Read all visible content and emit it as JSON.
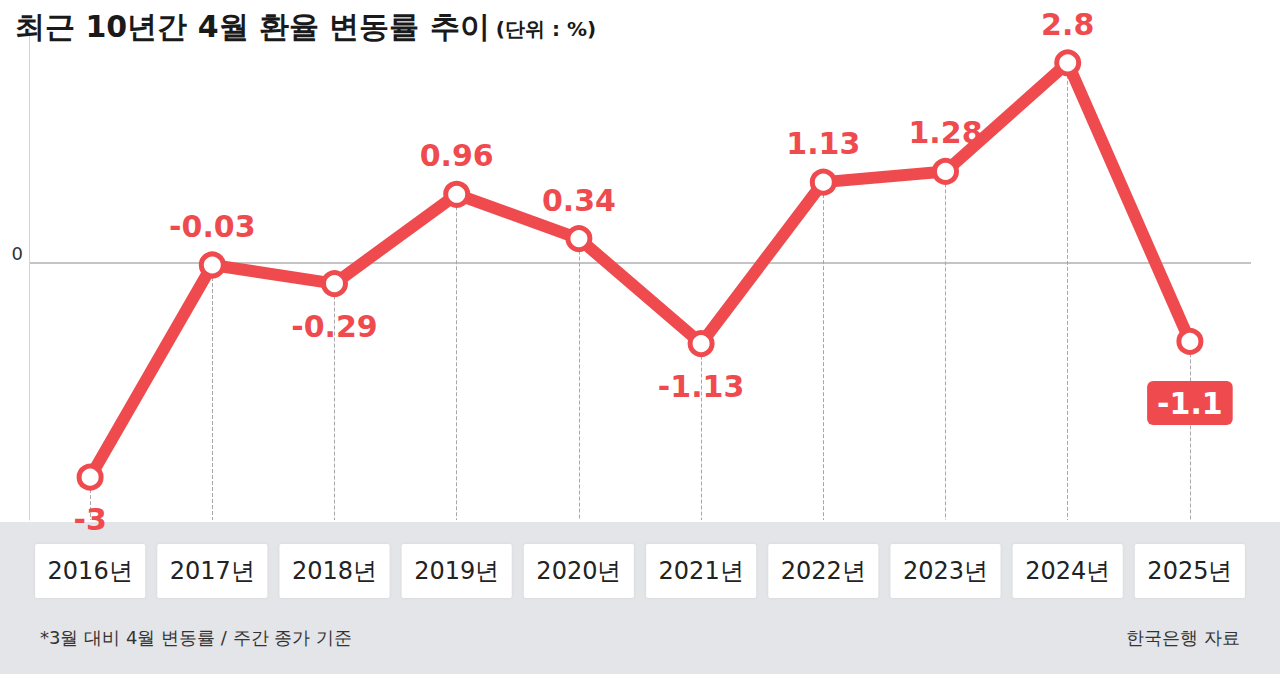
{
  "chart_data": {
    "type": "line",
    "title": "최근 10년간 4월 환율 변동률 추이",
    "subtitle": "(단위 : %)",
    "categories": [
      "2016년",
      "2017년",
      "2018년",
      "2019년",
      "2020년",
      "2021년",
      "2022년",
      "2023년",
      "2024년",
      "2025년"
    ],
    "values": [
      -3,
      -0.03,
      -0.29,
      0.96,
      0.34,
      -1.13,
      1.13,
      1.28,
      2.8,
      -1.1
    ],
    "color": "#ef4b4f",
    "ylim": [
      -3.6,
      3.4
    ],
    "yticks": [
      0
    ],
    "grid": true,
    "data_labels": true,
    "marker": "circle",
    "footnote": "*3월 대비 4월 변동률 / 주간 종가 기준",
    "source": "한국은행 자료"
  }
}
